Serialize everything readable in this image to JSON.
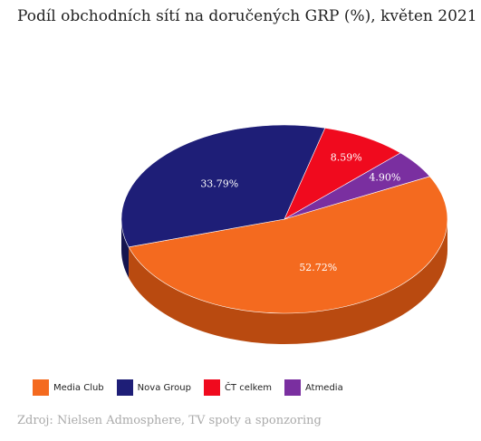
{
  "title": "Podíl obchodních sítí na doručených GRP (%), květen 2021",
  "source": "Zdroj: Nielsen Admosphere, TV spoty a sponzoring",
  "chart_data": {
    "type": "pie",
    "title": "Podíl obchodních sítí na doručených GRP (%), květen 2021",
    "series": [
      {
        "name": "Media Club",
        "value": 52.72,
        "label": "52.72%",
        "color": "#f46a1f",
        "side_color": "#b94a10"
      },
      {
        "name": "Nova Group",
        "value": 33.79,
        "label": "33.79%",
        "color": "#1e1e77",
        "side_color": "#15154f"
      },
      {
        "name": "ČT celkem",
        "value": 8.59,
        "label": "8.59%",
        "color": "#f00a1e",
        "side_color": "#b20010"
      },
      {
        "name": "Atmedia",
        "value": 4.9,
        "label": "4.90%",
        "color": "#7a2fa0",
        "side_color": "#561f72"
      }
    ],
    "legend_position": "bottom-left",
    "style": "3d"
  }
}
